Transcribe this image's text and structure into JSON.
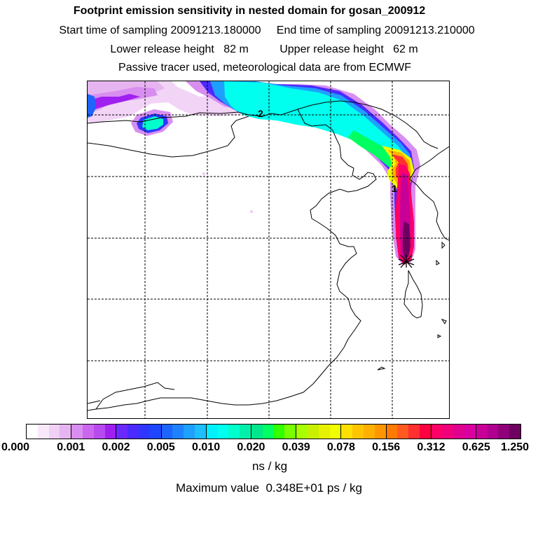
{
  "figure": {
    "title": "Footprint emission sensitivity in nested domain for gosan_200912",
    "sampling_line": "Start time of sampling 20091213.180000     End time of sampling 20091213.210000",
    "release_line": "Lower release height   82 m          Upper release height   62 m",
    "tracer_line": "Passive tracer used, meteorological data are from ECMWF"
  },
  "map": {
    "contour_labels": [
      "2",
      "1"
    ],
    "receptor_marker": "receptor-star-icon"
  },
  "colorbar": {
    "tick_labels": [
      "0.000",
      "0.001",
      "0.002",
      "0.005",
      "0.010",
      "0.020",
      "0.039",
      "0.078",
      "0.156",
      "0.312",
      "0.625",
      "1.250"
    ],
    "segments": [
      [
        "#ffffff",
        "#f8e8fa",
        "#f0d0f5",
        "#e6b4f0"
      ],
      [
        "#d88ef0",
        "#cc66ee",
        "#b84bef",
        "#a020f0"
      ],
      [
        "#6a2aff",
        "#4b2bff",
        "#2f37ff",
        "#1e46ff"
      ],
      [
        "#1e64ff",
        "#1e82ff",
        "#1ea0ff",
        "#1ebeff"
      ],
      [
        "#00f0ff",
        "#00ffee",
        "#00ffcc",
        "#00f0aa"
      ],
      [
        "#00e68a",
        "#00ff60",
        "#32ff00",
        "#78ff00"
      ],
      [
        "#a8ff00",
        "#c8f000",
        "#e6f000",
        "#f0ff00"
      ],
      [
        "#ffe000",
        "#ffc400",
        "#ffb000",
        "#ff9600"
      ],
      [
        "#ff7a00",
        "#ff5a20",
        "#ff3030",
        "#ff0040"
      ],
      [
        "#ff0066",
        "#f0007a",
        "#e00090",
        "#d800a0"
      ],
      [
        "#c80098",
        "#b00090",
        "#90007a",
        "#6e0060"
      ]
    ],
    "units": "ns / kg",
    "max_value_line": "Maximum value  0.348E+01 ps / kg"
  }
}
